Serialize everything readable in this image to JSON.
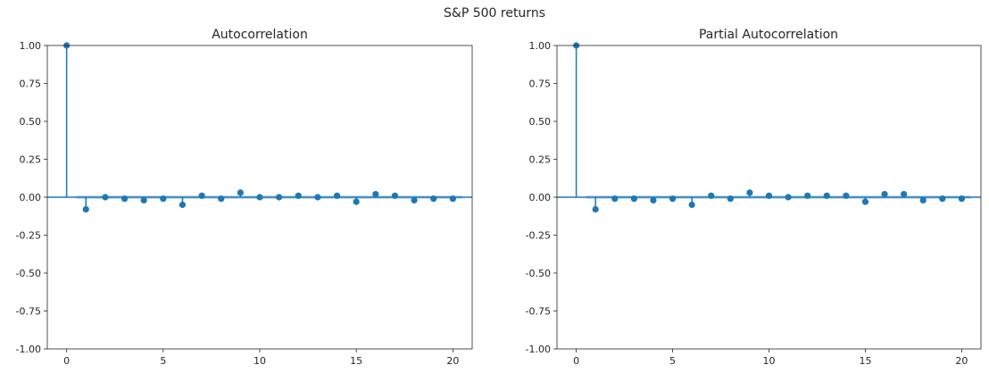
{
  "figure": {
    "suptitle": "S&P 500 returns"
  },
  "colors": {
    "stem": "#1f77b4",
    "band": "#1f77b4",
    "axis": "#262626"
  },
  "chart_data": [
    {
      "type": "stem",
      "title": "Autocorrelation",
      "xlabel": "",
      "ylabel": "",
      "xlim": [
        -1,
        21
      ],
      "ylim": [
        -1.0,
        1.0
      ],
      "xticks": [
        0,
        5,
        10,
        15,
        20
      ],
      "yticks": [
        "-1.00",
        "-0.75",
        "-0.50",
        "-0.25",
        "0.00",
        "0.25",
        "0.50",
        "0.75",
        "1.00"
      ],
      "confidence_band": 0.012,
      "lags": [
        0,
        1,
        2,
        3,
        4,
        5,
        6,
        7,
        8,
        9,
        10,
        11,
        12,
        13,
        14,
        15,
        16,
        17,
        18,
        19,
        20
      ],
      "values": [
        1.0,
        -0.08,
        0.0,
        -0.01,
        -0.02,
        -0.01,
        -0.05,
        0.01,
        -0.01,
        0.03,
        0.0,
        0.0,
        0.01,
        0.0,
        0.01,
        -0.03,
        0.02,
        0.01,
        -0.02,
        -0.01,
        -0.01
      ],
      "grid": false
    },
    {
      "type": "stem",
      "title": "Partial Autocorrelation",
      "xlabel": "",
      "ylabel": "",
      "xlim": [
        -1,
        21
      ],
      "ylim": [
        -1.0,
        1.0
      ],
      "xticks": [
        0,
        5,
        10,
        15,
        20
      ],
      "yticks": [
        "-1.00",
        "-0.75",
        "-0.50",
        "-0.25",
        "0.00",
        "0.25",
        "0.50",
        "0.75",
        "1.00"
      ],
      "confidence_band": 0.012,
      "lags": [
        0,
        1,
        2,
        3,
        4,
        5,
        6,
        7,
        8,
        9,
        10,
        11,
        12,
        13,
        14,
        15,
        16,
        17,
        18,
        19,
        20
      ],
      "values": [
        1.0,
        -0.08,
        -0.01,
        -0.01,
        -0.02,
        -0.01,
        -0.05,
        0.01,
        -0.01,
        0.03,
        0.01,
        0.0,
        0.01,
        0.01,
        0.01,
        -0.03,
        0.02,
        0.02,
        -0.02,
        -0.01,
        -0.01
      ],
      "grid": false
    }
  ]
}
